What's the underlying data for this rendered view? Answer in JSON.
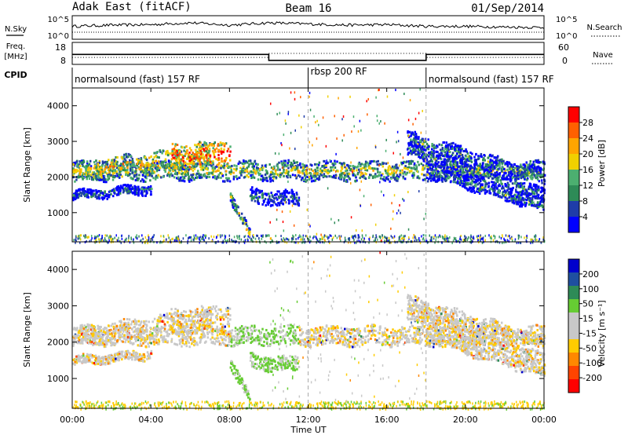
{
  "header": {
    "station": "Adak East (fitACF)",
    "beam": "Beam 16",
    "date": "01/Sep/2014"
  },
  "top_labels": {
    "nsky": "N.Sky",
    "freq_line1": "Freq.",
    "freq_line2": "[MHz]",
    "cpid": "CPID",
    "nsearch": "N.Search",
    "nave": "Nave"
  },
  "cpid_segments": [
    {
      "label": "normalsound (fast) 157 RF",
      "start": 0,
      "end": 12
    },
    {
      "label": "rbsp 200 RF",
      "start": 12,
      "end": 18
    },
    {
      "label": "normalsound (fast) 157 RF",
      "start": 18,
      "end": 24
    }
  ],
  "colors": {
    "power": [
      "#0000ff",
      "#1f3ca8",
      "#2e8b57",
      "#4caf70",
      "#f0d000",
      "#ffa500",
      "#ff6000",
      "#ff0000"
    ],
    "velocity": [
      "#0000cc",
      "#1f4fa0",
      "#2e8b57",
      "#66cc33",
      "#c8c8c8",
      "#c8c8c8",
      "#ffcc00",
      "#ff8800",
      "#ff4400",
      "#ff0000"
    ]
  },
  "chart_data": [
    {
      "type": "line",
      "panel": "noise",
      "y_left_ticks": [
        "10^5",
        "10^0"
      ],
      "y_right_ticks": [
        "10^5",
        "10^0"
      ],
      "series": [
        {
          "name": "N.Sky",
          "style": "solid",
          "x": [
            0,
            2,
            4,
            6,
            8,
            10,
            12,
            14,
            16,
            18,
            20,
            22,
            24
          ],
          "values": [
            0.55,
            0.6,
            0.62,
            0.7,
            0.6,
            0.7,
            0.65,
            0.6,
            0.62,
            0.55,
            0.55,
            0.52,
            0.5
          ]
        },
        {
          "name": "N.Search",
          "style": "dotted",
          "x": [
            0,
            24
          ],
          "values": [
            0.3,
            0.3
          ]
        }
      ]
    },
    {
      "type": "line",
      "panel": "frequency",
      "y_left_ticks": [
        "18",
        "8"
      ],
      "y_right_ticks": [
        "60",
        "0"
      ],
      "series": [
        {
          "name": "Freq.",
          "style": "solid",
          "x": [
            0,
            10,
            10,
            18,
            18,
            24
          ],
          "values": [
            12,
            12,
            9,
            9,
            12,
            12
          ]
        },
        {
          "name": "Nave",
          "style": "dotted",
          "x": [
            0,
            10,
            10,
            18,
            18,
            24
          ],
          "values": [
            10.5,
            10.5,
            12.5,
            12.5,
            10.5,
            10.5
          ]
        }
      ]
    },
    {
      "type": "heatmap",
      "panel": "power",
      "ylabel": "Slant Range [km]",
      "ylim": [
        180,
        4500
      ],
      "y_ticks": [
        1000,
        2000,
        3000,
        4000
      ],
      "colorbar_label": "Power [dB]",
      "colorbar_ticks": [
        4,
        8,
        12,
        16,
        20,
        24,
        28
      ],
      "colorbar_range": [
        0,
        32
      ],
      "echo_bands": [
        {
          "t": [
            0,
            24
          ],
          "range_center": [
            2200,
            2200
          ],
          "width": 250,
          "level": 0.5
        },
        {
          "t": [
            0,
            7
          ],
          "range_center": [
            2150,
            2650
          ],
          "width": 280,
          "level": 0.6
        },
        {
          "t": [
            5,
            8
          ],
          "range_center": [
            2600,
            2700
          ],
          "width": 350,
          "level": 0.85
        },
        {
          "t": [
            0,
            4
          ],
          "range_center": [
            1500,
            1700
          ],
          "width": 120,
          "level": 0.25
        },
        {
          "t": [
            8,
            9
          ],
          "range_center": [
            1500,
            400
          ],
          "width": 150,
          "level": 0.55
        },
        {
          "t": [
            9,
            11.5
          ],
          "range_center": [
            1500,
            1400
          ],
          "width": 200,
          "level": 0.2
        },
        {
          "t": [
            17,
            24
          ],
          "range_center": [
            3100,
            2000
          ],
          "width": 200,
          "level": 0.35
        },
        {
          "t": [
            17,
            24
          ],
          "range_center": [
            2800,
            1500
          ],
          "width": 180,
          "level": 0.3
        },
        {
          "t": [
            18,
            24
          ],
          "range_center": [
            2200,
            1200
          ],
          "width": 160,
          "level": 0.3
        }
      ]
    },
    {
      "type": "heatmap",
      "panel": "velocity",
      "ylabel": "Slant Range [km]",
      "xlabel": "Time UT",
      "ylim": [
        180,
        4500
      ],
      "y_ticks": [
        1000,
        2000,
        3000,
        4000
      ],
      "x_ticks": [
        "00:00",
        "04:00",
        "08:00",
        "12:00",
        "16:00",
        "20:00",
        "00:00"
      ],
      "x_tick_hours": [
        0,
        4,
        8,
        12,
        16,
        20,
        24
      ],
      "colorbar_label": "Velocity [m s⁻¹]",
      "colorbar_ticks": [
        200,
        100,
        50,
        15,
        -15,
        -50,
        -100,
        -200
      ]
    }
  ]
}
